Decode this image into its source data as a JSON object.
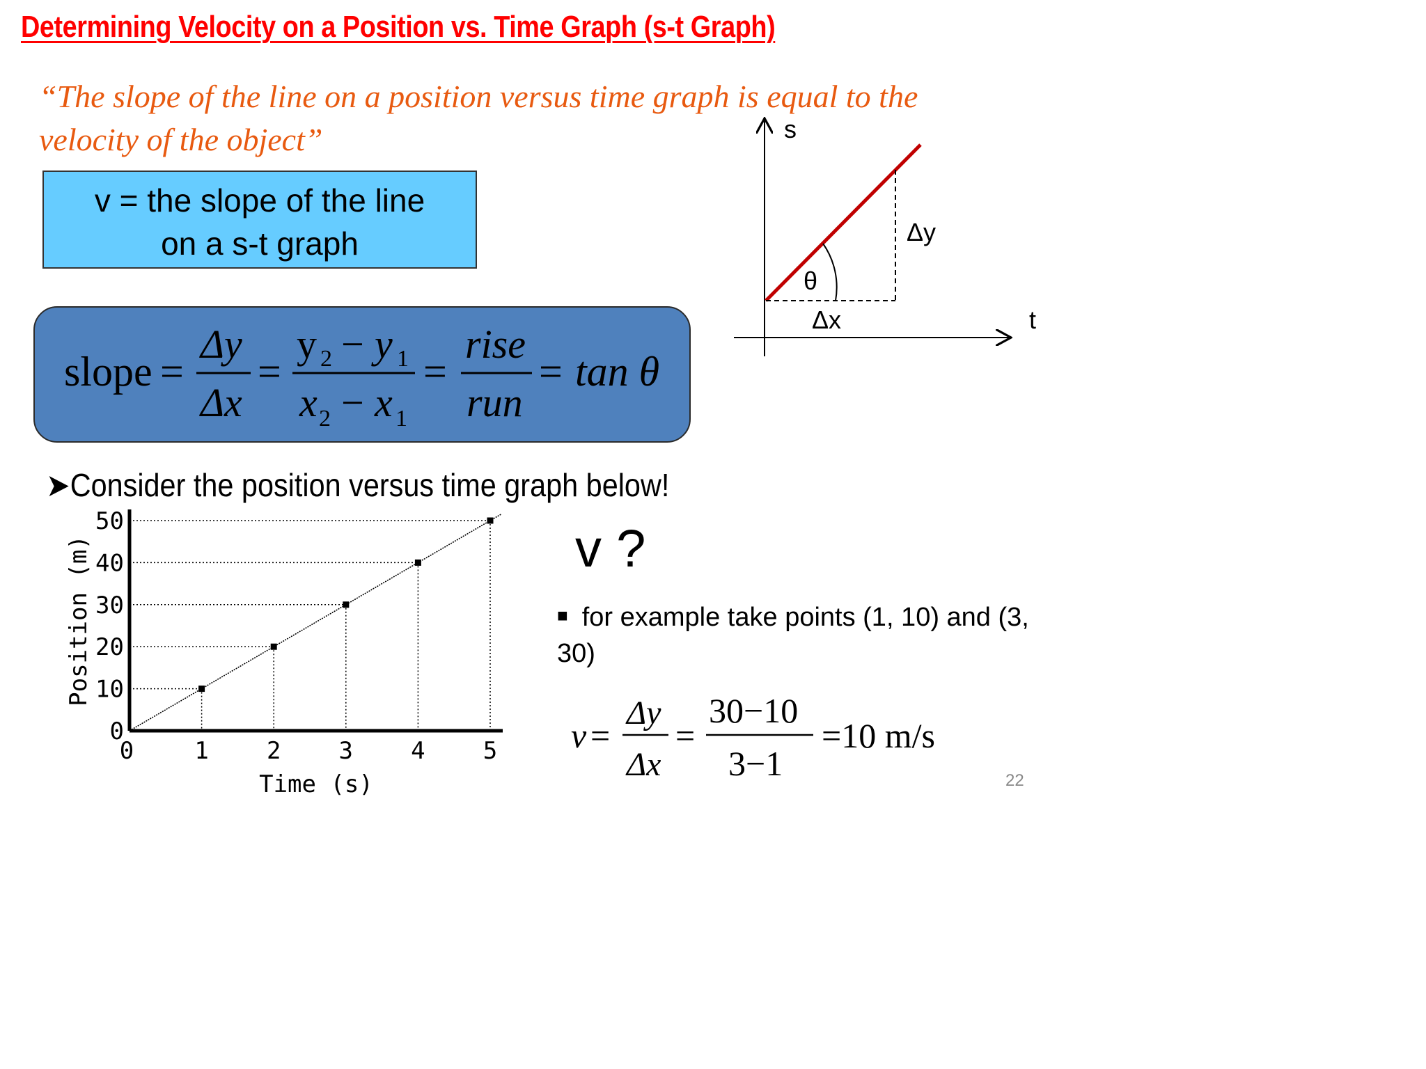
{
  "title": "Determining Velocity on a Position vs. Time Graph (s-t Graph)",
  "quote": "“The slope of the line on a position versus time graph is equal to the velocity of the object”",
  "definition": {
    "line1": "v = the slope of the line",
    "line2": "on a s-t graph"
  },
  "formula": {
    "slope": "slope",
    "eq": "=",
    "dy": "Δy",
    "dx": "Δx",
    "y2": "y",
    "y1": "y",
    "x2": "x",
    "x1": "x",
    "sub2": "2",
    "sub1": "1",
    "minus": "−",
    "rise": "rise",
    "run": "run",
    "tan": "tan θ"
  },
  "diagram": {
    "s_label": "s",
    "t_label": "t",
    "dy_label": "Δy",
    "dx_label": "Δx",
    "theta_label": "θ",
    "line_color": "#c00000"
  },
  "consider": "Consider the position versus time graph below!",
  "chart_data": {
    "type": "line",
    "x": [
      0,
      1,
      2,
      3,
      4,
      5
    ],
    "values": [
      0,
      10,
      20,
      30,
      40,
      50
    ],
    "xlabel": "Time (s)",
    "ylabel": "Position (m)",
    "xlim": [
      0,
      5
    ],
    "ylim": [
      0,
      50
    ],
    "xticks": [
      "0",
      "1",
      "2",
      "3",
      "4",
      "5"
    ],
    "yticks": [
      "0",
      "10",
      "20",
      "30",
      "40",
      "50"
    ]
  },
  "question": "v ?",
  "bullet": "for example take points (1, 10) and (3, 30)",
  "calc": {
    "v": "v",
    "eq": "=",
    "dy": "Δy",
    "dx": "Δx",
    "num": "30−10",
    "den": "3−1",
    "result": "=10 m/s"
  },
  "page_number": "22"
}
